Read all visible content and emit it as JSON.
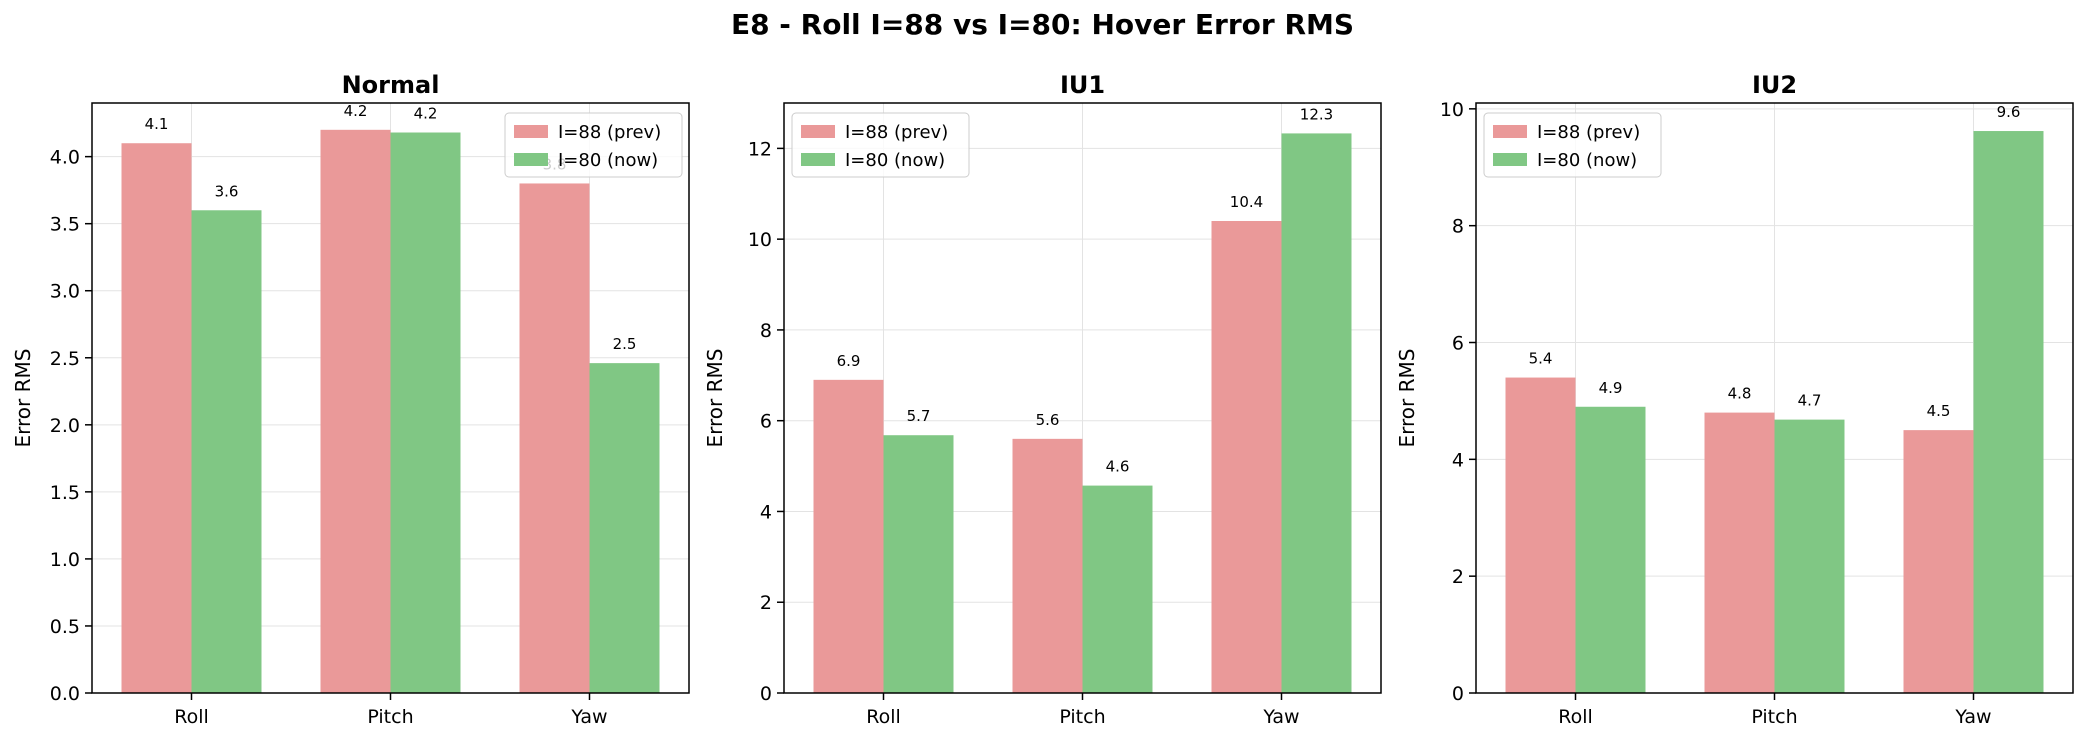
{
  "figure": {
    "title": "E8 - Roll I=88 vs I=80: Hover Error RMS"
  },
  "colors": {
    "prev": "#ea9999",
    "now": "#80c784",
    "grid": "#e3e3e3",
    "frame": "#000000"
  },
  "chart_data": [
    {
      "type": "bar",
      "title": "Normal",
      "xlabel": "",
      "ylabel": "Error RMS",
      "categories": [
        "Roll",
        "Pitch",
        "Yaw"
      ],
      "ylim": [
        0,
        4.4
      ],
      "yticks": [
        "0.0",
        "0.5",
        "1.0",
        "1.5",
        "2.0",
        "2.5",
        "3.0",
        "3.5",
        "4.0"
      ],
      "grid": true,
      "legend_position": "top-right",
      "series": [
        {
          "name": "I=88 (prev)",
          "values": [
            4.1,
            4.2,
            3.8
          ],
          "labels": [
            "4.1",
            "4.2",
            "3.8"
          ]
        },
        {
          "name": "I=80 (now)",
          "values": [
            3.6,
            4.18,
            2.46
          ],
          "labels": [
            "3.6",
            "4.2",
            "2.5"
          ]
        }
      ]
    },
    {
      "type": "bar",
      "title": "IU1",
      "xlabel": "",
      "ylabel": "Error RMS",
      "categories": [
        "Roll",
        "Pitch",
        "Yaw"
      ],
      "ylim": [
        0,
        13
      ],
      "yticks": [
        "0",
        "2",
        "4",
        "6",
        "8",
        "10",
        "12"
      ],
      "grid": true,
      "legend_position": "top-left",
      "series": [
        {
          "name": "I=88 (prev)",
          "values": [
            6.9,
            5.6,
            10.4
          ],
          "labels": [
            "6.9",
            "5.6",
            "10.4"
          ]
        },
        {
          "name": "I=80 (now)",
          "values": [
            5.68,
            4.57,
            12.33
          ],
          "labels": [
            "5.7",
            "4.6",
            "12.3"
          ]
        }
      ]
    },
    {
      "type": "bar",
      "title": "IU2",
      "xlabel": "",
      "ylabel": "Error RMS",
      "categories": [
        "Roll",
        "Pitch",
        "Yaw"
      ],
      "ylim": [
        0,
        10.1
      ],
      "yticks": [
        "0",
        "2",
        "4",
        "6",
        "8",
        "10"
      ],
      "grid": true,
      "legend_position": "top-left",
      "series": [
        {
          "name": "I=88 (prev)",
          "values": [
            5.4,
            4.8,
            4.5
          ],
          "labels": [
            "5.4",
            "4.8",
            "4.5"
          ]
        },
        {
          "name": "I=80 (now)",
          "values": [
            4.9,
            4.68,
            9.62
          ],
          "labels": [
            "4.9",
            "4.7",
            "9.6"
          ]
        }
      ]
    }
  ]
}
